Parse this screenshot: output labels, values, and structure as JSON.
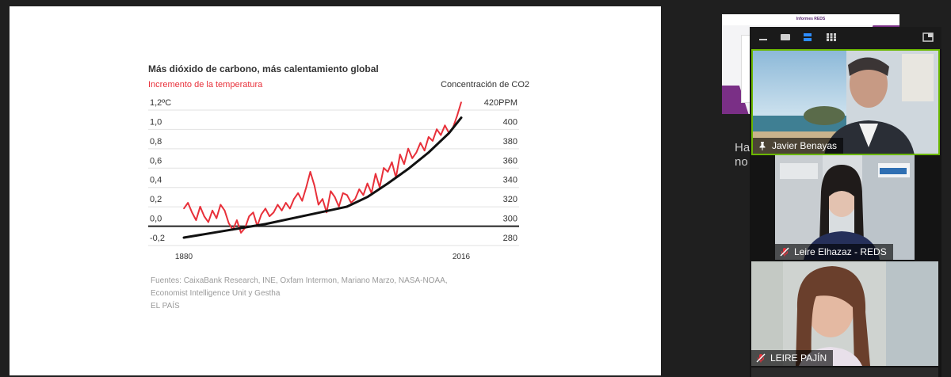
{
  "slide": {
    "title": "Más dióxido de carbono, más calentamiento global",
    "left_axis_label": "Incremento de la temperatura",
    "right_axis_label": "Concentración de CO2",
    "sources": [
      "Fuentes: CaixaBank Research, INE, Oxfam Intermon, Mariano Marzo, NASA-NOAA,",
      "Economist Intelligence Unit y Gestha",
      "EL PAÍS"
    ]
  },
  "chart_data": {
    "type": "line",
    "title": "Más dióxido de carbono, más calentamiento global",
    "ylabel": "Incremento de la temperatura",
    "y2label": "Concentración de CO2",
    "left_ticks": [
      "1,2ºC",
      "1,0",
      "0,8",
      "0,6",
      "0,4",
      "0,2",
      "0,0",
      "-0,2"
    ],
    "right_ticks": [
      "420PPM",
      "400",
      "380",
      "360",
      "340",
      "320",
      "300",
      "280"
    ],
    "x_ticks": [
      "1880",
      "2016"
    ],
    "ylim": [
      -0.2,
      1.2
    ],
    "y2lim": [
      280,
      420
    ],
    "xlim": [
      1880,
      2016
    ],
    "temperature_color": "#e8303a",
    "co2_color": "#111111",
    "series": [
      {
        "name": "Incremento de la temperatura",
        "x": [
          1880,
          1882,
          1884,
          1886,
          1888,
          1890,
          1892,
          1894,
          1896,
          1898,
          1900,
          1902,
          1904,
          1906,
          1908,
          1910,
          1912,
          1914,
          1916,
          1918,
          1920,
          1922,
          1924,
          1926,
          1928,
          1930,
          1932,
          1934,
          1936,
          1938,
          1940,
          1942,
          1944,
          1946,
          1948,
          1950,
          1952,
          1954,
          1956,
          1958,
          1960,
          1962,
          1964,
          1966,
          1968,
          1970,
          1972,
          1974,
          1976,
          1978,
          1980,
          1982,
          1984,
          1986,
          1988,
          1990,
          1992,
          1994,
          1996,
          1998,
          2000,
          2002,
          2004,
          2006,
          2008,
          2010,
          2012,
          2014,
          2016
        ],
        "values": [
          0.1,
          0.16,
          0.06,
          -0.02,
          0.12,
          0.02,
          -0.04,
          0.08,
          0.0,
          0.14,
          0.08,
          -0.05,
          -0.12,
          -0.02,
          -0.15,
          -0.1,
          0.02,
          0.06,
          -0.08,
          0.04,
          0.1,
          0.02,
          0.06,
          0.14,
          0.08,
          0.16,
          0.1,
          0.2,
          0.26,
          0.18,
          0.32,
          0.48,
          0.34,
          0.14,
          0.2,
          0.06,
          0.28,
          0.22,
          0.12,
          0.26,
          0.24,
          0.16,
          0.2,
          0.3,
          0.24,
          0.36,
          0.26,
          0.46,
          0.32,
          0.52,
          0.48,
          0.58,
          0.42,
          0.66,
          0.56,
          0.72,
          0.62,
          0.68,
          0.78,
          0.7,
          0.84,
          0.8,
          0.92,
          0.86,
          0.96,
          0.88,
          0.94,
          1.06,
          1.2
        ]
      },
      {
        "name": "Concentración de CO2",
        "x": [
          1880,
          1900,
          1920,
          1940,
          1960,
          1970,
          1980,
          1990,
          2000,
          2010,
          2016
        ],
        "values": [
          280,
          287,
          294,
          303,
          312,
          322,
          336,
          351,
          368,
          388,
          404
        ]
      }
    ]
  },
  "thumbnail": {
    "title": "Informes REDS"
  },
  "chat_preview": {
    "line1": "Ha",
    "line2": "no"
  },
  "participants": [
    {
      "name": "Javier Benayas",
      "pinned": true,
      "muted": false,
      "active_speaker": true
    },
    {
      "name": "Leire Elhazaz - REDS",
      "pinned": false,
      "muted": true,
      "active_speaker": false
    },
    {
      "name": "LEIRE PAJÍN",
      "pinned": false,
      "muted": true,
      "active_speaker": false
    }
  ],
  "colors": {
    "active_border": "#6bb700",
    "accent_blue": "#2d8cff",
    "mic_muted": "#e8303a"
  }
}
